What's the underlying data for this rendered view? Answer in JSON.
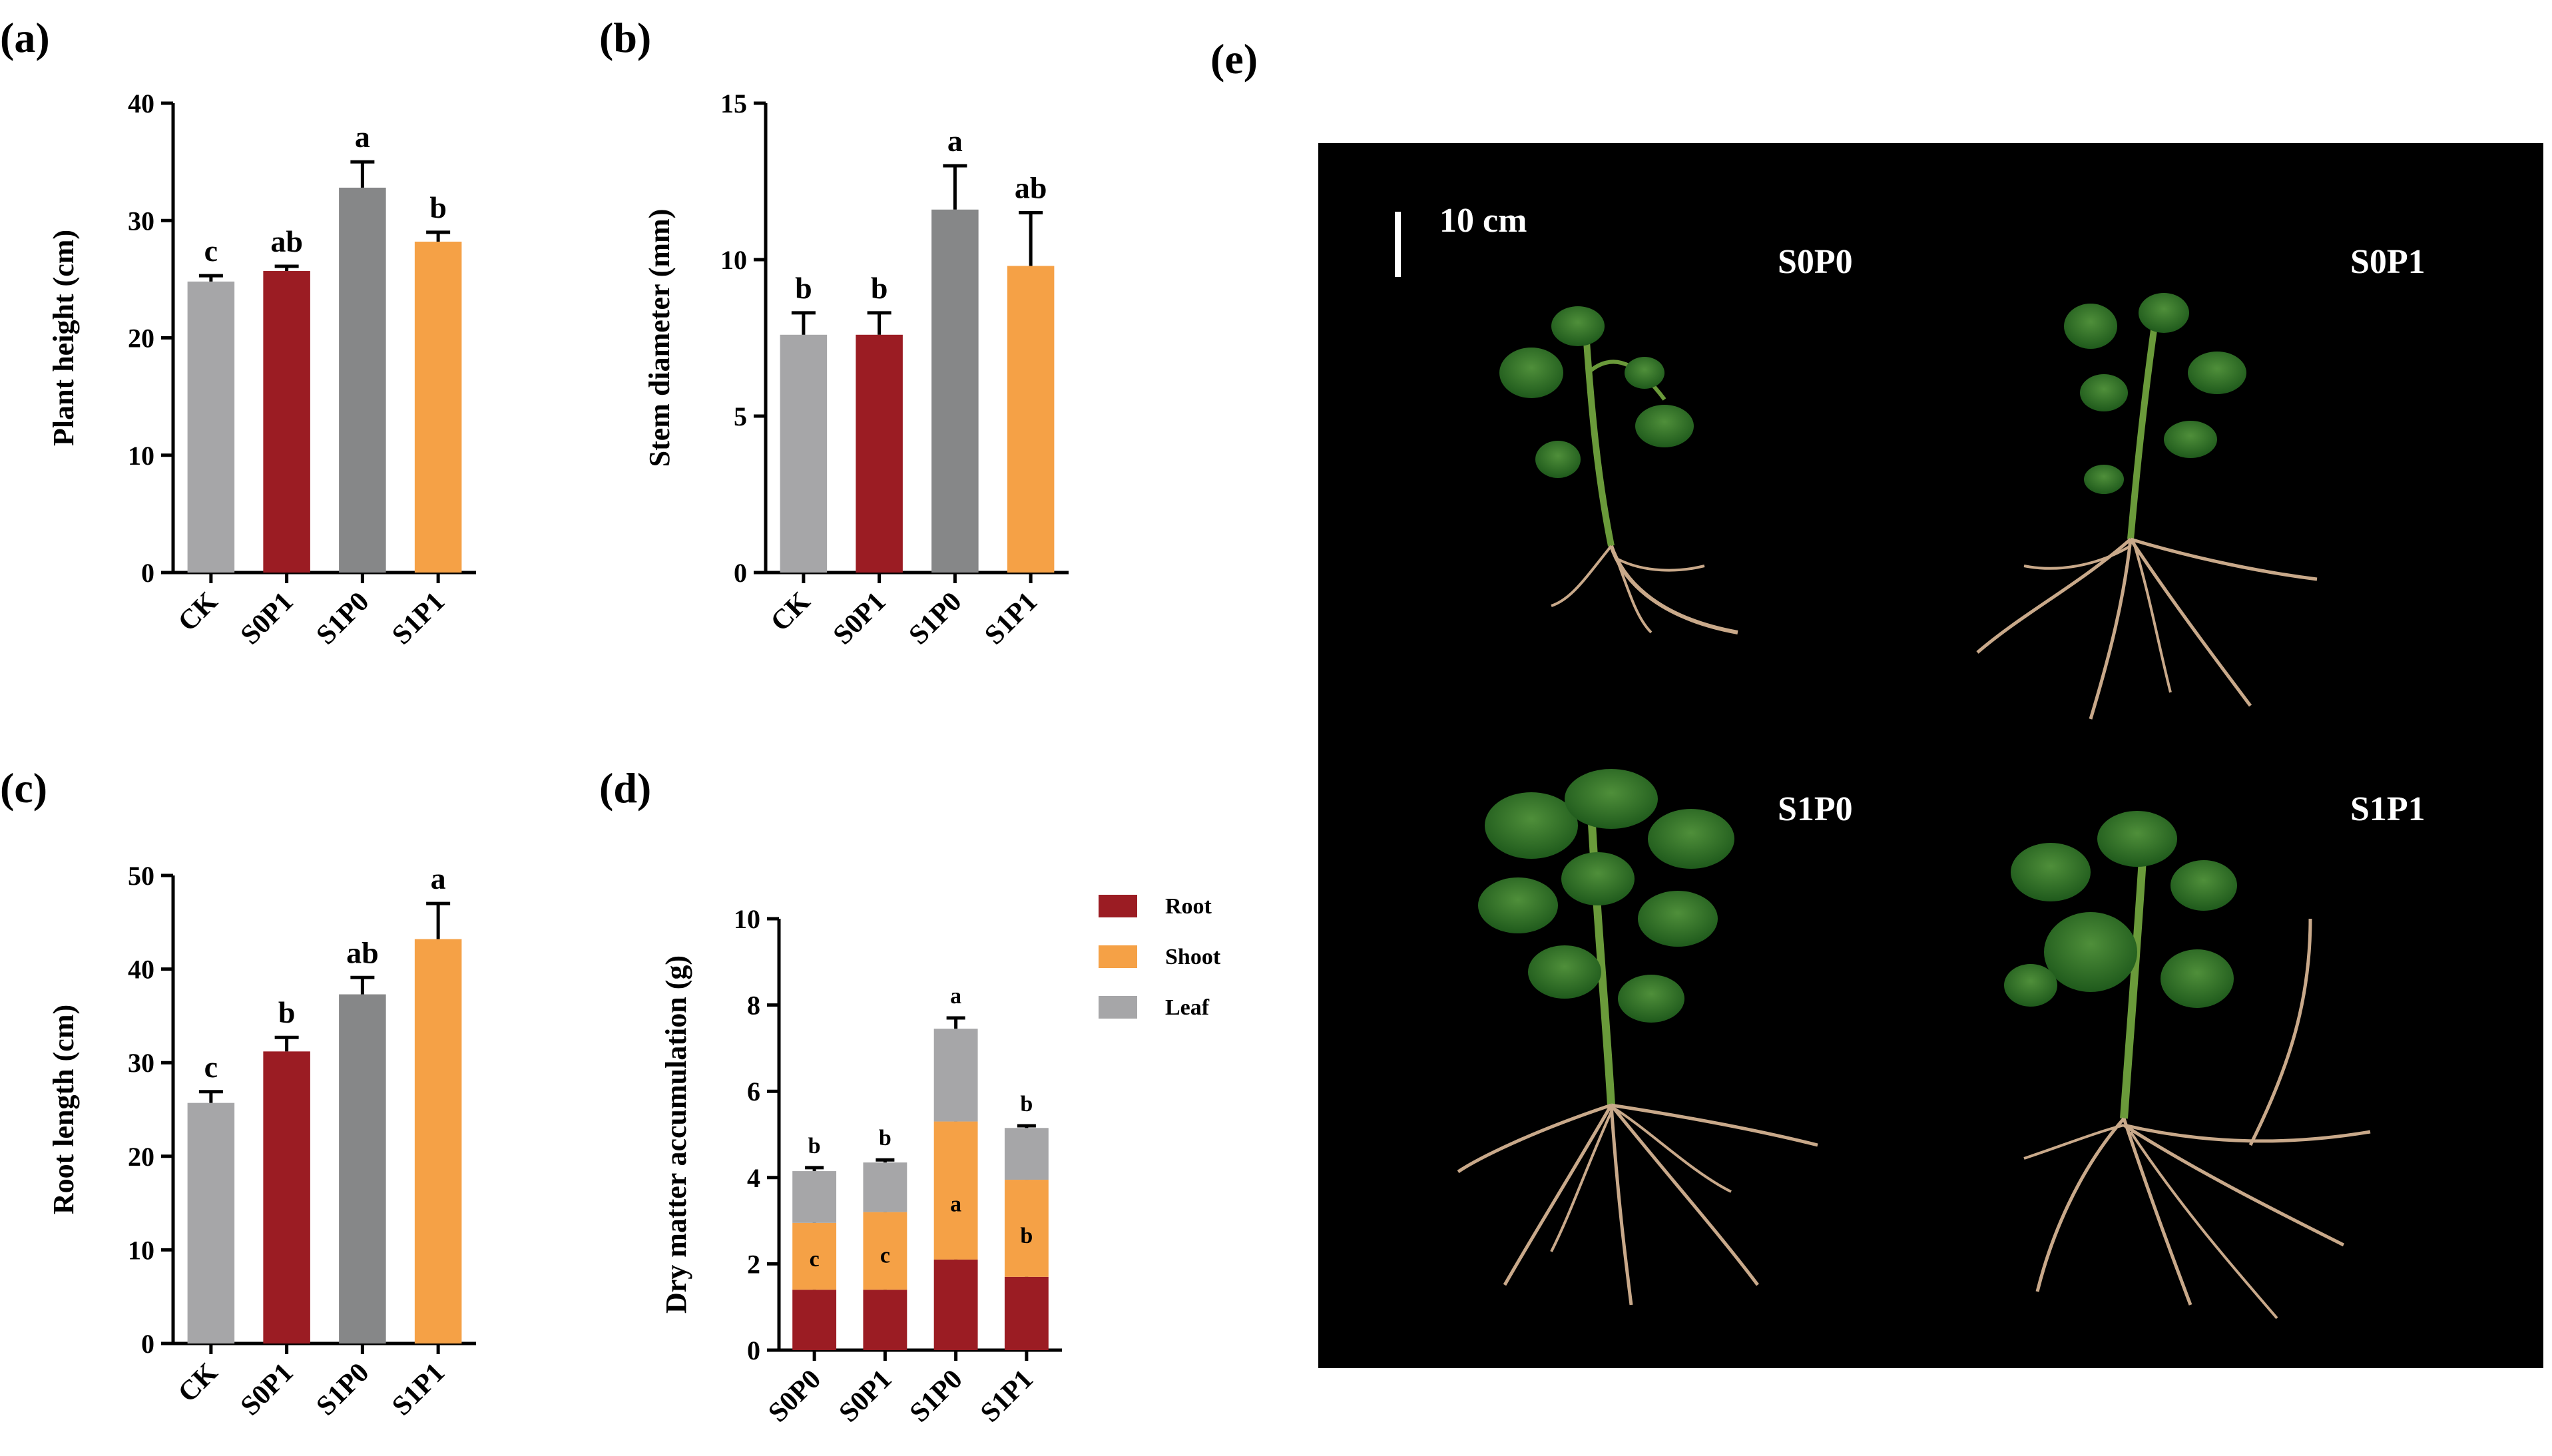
{
  "panel_labels": {
    "a": "(a)",
    "b": "(b)",
    "c": "(c)",
    "d": "(d)",
    "e": "(e)"
  },
  "colors": {
    "CK": "#a6a6a8",
    "S0P1": "#9b1c23",
    "S1P0": "#868788",
    "S1P1": "#f5a146",
    "root": "#9b1c23",
    "shoot": "#f5a146",
    "leaf": "#a6a6a8",
    "photo_bg": "#000000"
  },
  "chart_data": [
    {
      "id": "a",
      "type": "bar",
      "title": "",
      "xlabel": "",
      "ylabel": "Plant height (cm)",
      "ylim": [
        0,
        40
      ],
      "yticks": [
        0,
        10,
        20,
        30,
        40
      ],
      "categories": [
        "CK",
        "S0P1",
        "S1P0",
        "S1P1"
      ],
      "values": [
        24.8,
        25.7,
        32.8,
        28.2
      ],
      "errors": [
        0.5,
        0.4,
        2.2,
        0.8
      ],
      "letters": [
        "c",
        "ab",
        "a",
        "b"
      ]
    },
    {
      "id": "b",
      "type": "bar",
      "title": "",
      "xlabel": "",
      "ylabel": "Stem diameter (mm)",
      "ylim": [
        0,
        15
      ],
      "yticks": [
        0,
        5,
        10,
        15
      ],
      "categories": [
        "CK",
        "S0P1",
        "S1P0",
        "S1P1"
      ],
      "values": [
        7.6,
        7.6,
        11.6,
        9.8
      ],
      "errors": [
        0.7,
        0.7,
        1.4,
        1.7
      ],
      "letters": [
        "b",
        "b",
        "a",
        "ab"
      ]
    },
    {
      "id": "c",
      "type": "bar",
      "title": "",
      "xlabel": "",
      "ylabel": "Root length (cm)",
      "ylim": [
        0,
        50
      ],
      "yticks": [
        0,
        10,
        20,
        30,
        40,
        50
      ],
      "categories": [
        "CK",
        "S0P1",
        "S1P0",
        "S1P1"
      ],
      "values": [
        25.7,
        31.2,
        37.3,
        43.2
      ],
      "errors": [
        1.2,
        1.5,
        1.8,
        3.8
      ],
      "letters": [
        "c",
        "b",
        "ab",
        "a"
      ]
    },
    {
      "id": "d",
      "type": "bar",
      "stacked": true,
      "title": "",
      "xlabel": "",
      "ylabel": "Dry matter accumulation (g)",
      "ylim": [
        0,
        10
      ],
      "yticks": [
        0,
        2,
        4,
        6,
        8,
        10
      ],
      "categories": [
        "S0P0",
        "S0P1",
        "S1P0",
        "S1P1"
      ],
      "legend_position": "top-right",
      "series": [
        {
          "name": "Root",
          "values": [
            1.4,
            1.4,
            2.1,
            1.7
          ],
          "errors": [
            0.12,
            0.1,
            0.1,
            0.08
          ],
          "letters": [
            "c",
            "c",
            "a",
            "b"
          ]
        },
        {
          "name": "Shoot",
          "values": [
            1.55,
            1.8,
            3.2,
            2.25
          ],
          "errors": [
            0.12,
            0.05,
            0.3,
            0.1
          ],
          "letters": [
            "c",
            "c",
            "a",
            "b"
          ]
        },
        {
          "name": "Leaf",
          "values": [
            1.2,
            1.15,
            2.15,
            1.2
          ],
          "errors": [
            0.08,
            0.06,
            0.25,
            0.05
          ],
          "letters": [
            "b",
            "b",
            "a",
            "b"
          ]
        }
      ],
      "mid_letters": [
        "c",
        "c",
        "a",
        "b"
      ]
    }
  ],
  "photo": {
    "scale_label": "10 cm",
    "labels": [
      "S0P0",
      "S0P1",
      "S1P0",
      "S1P1"
    ]
  }
}
